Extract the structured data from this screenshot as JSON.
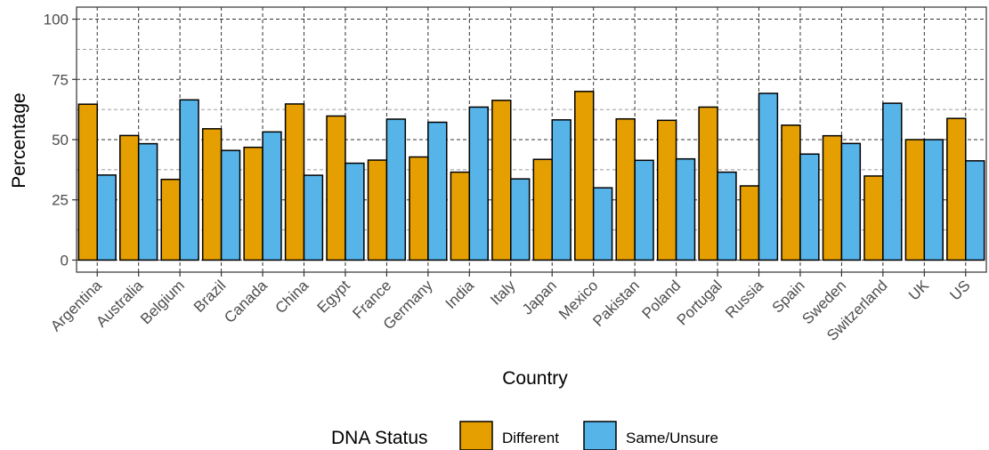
{
  "chart_data": {
    "type": "bar",
    "title": "",
    "xlabel": "Country",
    "ylabel": "Percentage",
    "ylim": [
      0,
      100
    ],
    "yticks": [
      0,
      25,
      50,
      75,
      100
    ],
    "grid": true,
    "legend": {
      "title": "DNA Status",
      "placement": "bottom"
    },
    "categories": [
      "Argentina",
      "Australia",
      "Belgium",
      "Brazil",
      "Canada",
      "China",
      "Egypt",
      "France",
      "Germany",
      "India",
      "Italy",
      "Japan",
      "Mexico",
      "Pakistan",
      "Poland",
      "Portugal",
      "Russia",
      "Spain",
      "Sweden",
      "Switzerland",
      "UK",
      "US"
    ],
    "series": [
      {
        "name": "Different",
        "color": "#E69F00",
        "values": [
          64.7,
          51.7,
          33.5,
          54.5,
          46.8,
          64.8,
          59.8,
          41.5,
          42.8,
          36.5,
          66.3,
          41.8,
          70.0,
          58.6,
          58.0,
          63.5,
          30.8,
          56.0,
          51.6,
          34.9,
          50.0,
          58.8
        ]
      },
      {
        "name": "Same/Unsure",
        "color": "#56B4E9",
        "values": [
          35.3,
          48.3,
          66.5,
          45.5,
          53.2,
          35.2,
          40.2,
          58.5,
          57.2,
          63.5,
          33.7,
          58.2,
          30.0,
          41.4,
          42.0,
          36.5,
          69.2,
          44.0,
          48.4,
          65.1,
          50.0,
          41.2
        ]
      }
    ]
  }
}
